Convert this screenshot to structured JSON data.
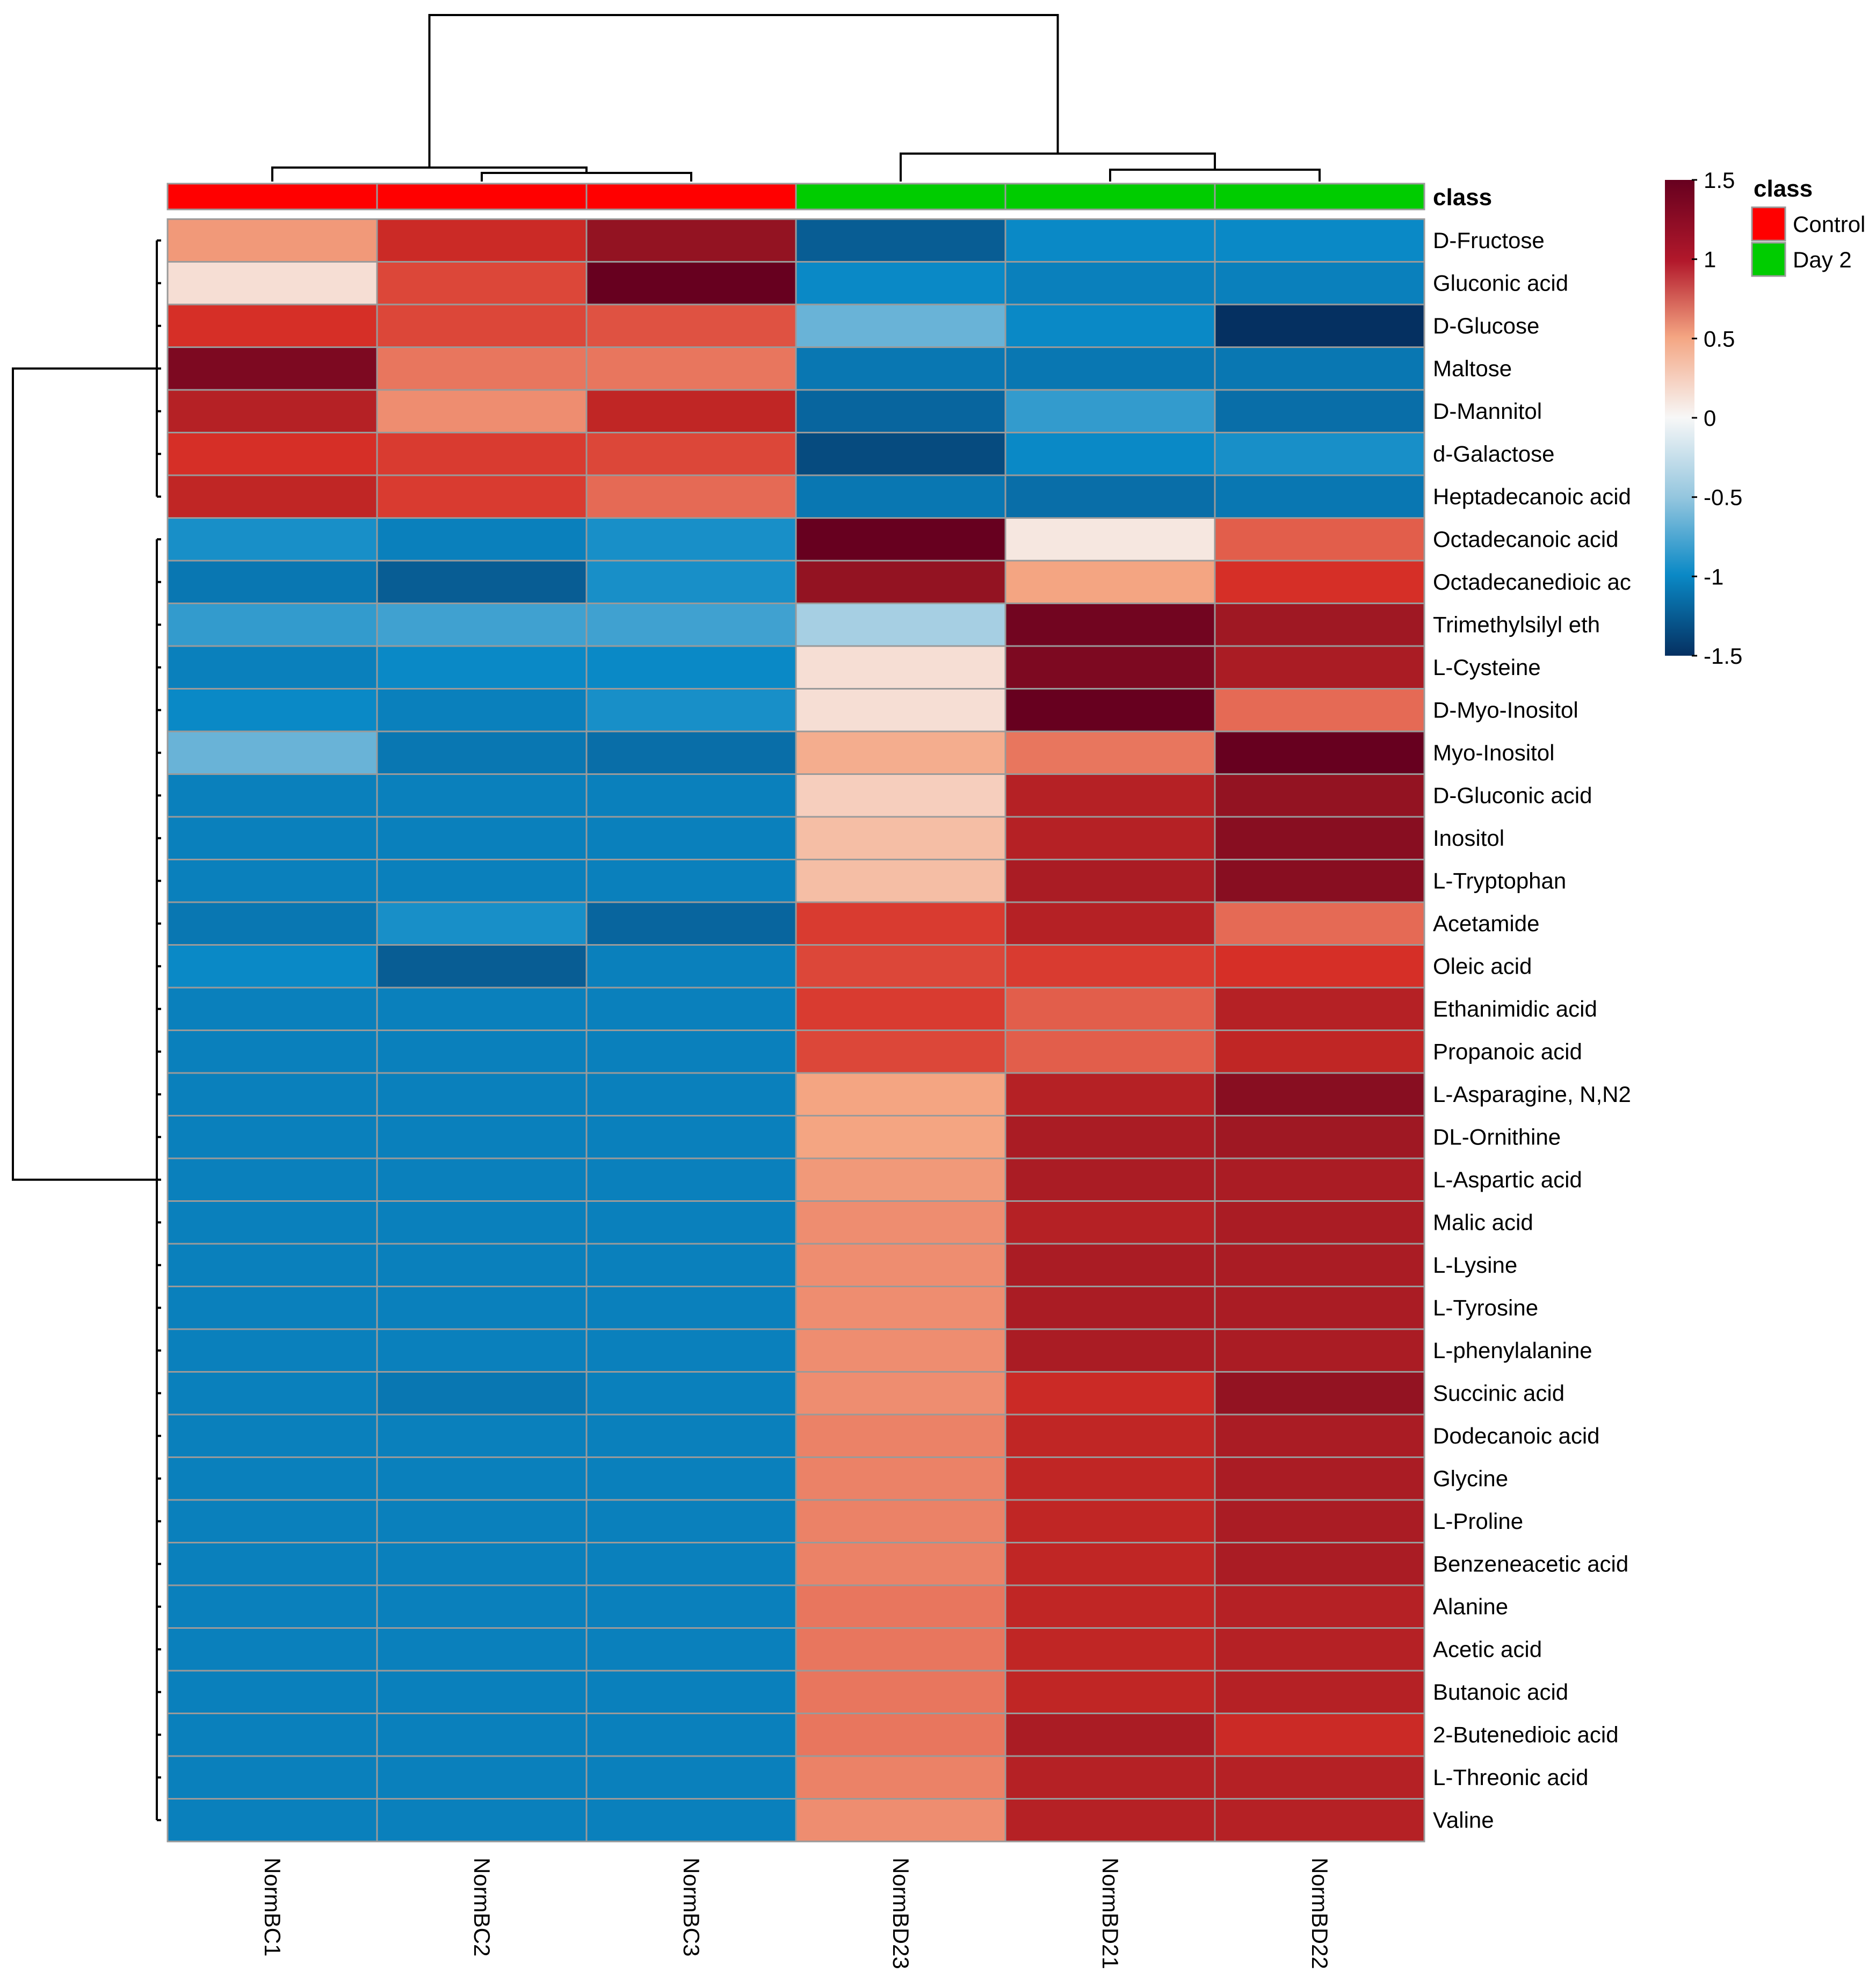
{
  "chart_data": {
    "type": "heatmap",
    "title": "",
    "class_label": "class",
    "columns": [
      "NormBC1",
      "NormBC2",
      "NormBC3",
      "NormBD23",
      "NormBD21",
      "NormBD22"
    ],
    "column_class": [
      "Control",
      "Control",
      "Control",
      "Day 2",
      "Day 2",
      "Day 2"
    ],
    "rows": [
      "D-Fructose",
      "Gluconic acid",
      "D-Glucose",
      "Maltose",
      "D-Mannitol",
      "d-Galactose",
      "Heptadecanoic acid",
      "Octadecanoic acid",
      "Octadecanedioic ac",
      "Trimethylsilyl eth",
      "L-Cysteine",
      "D-Myo-Inositol",
      "Myo-Inositol",
      "D-Gluconic acid",
      "Inositol",
      "L-Tryptophan",
      "Acetamide",
      "Oleic acid",
      "Ethanimidic acid",
      "Propanoic acid",
      "L-Asparagine, N,N2",
      "DL-Ornithine",
      "L-Aspartic acid",
      "Malic acid",
      "L-Lysine",
      "L-Tyrosine",
      "L-phenylalanine",
      "Succinic acid",
      "Dodecanoic acid",
      "Glycine",
      "L-Proline",
      "Benzeneacetic acid",
      "Alanine",
      "Acetic acid",
      "Butanoic acid",
      "2-Butenedioic acid",
      "L-Threonic acid",
      "Valine"
    ],
    "values": [
      [
        0.55,
        1.05,
        1.3,
        -1.25,
        -1.0,
        -1.0
      ],
      [
        0.15,
        0.9,
        1.55,
        -1.0,
        -1.05,
        -1.05
      ],
      [
        1.0,
        0.9,
        0.85,
        -0.65,
        -1.0,
        -1.5
      ],
      [
        1.4,
        0.7,
        0.7,
        -1.1,
        -1.1,
        -1.1
      ],
      [
        1.15,
        0.6,
        1.1,
        -1.2,
        -0.85,
        -1.15
      ],
      [
        1.0,
        0.95,
        0.9,
        -1.35,
        -1.0,
        -0.95
      ],
      [
        1.1,
        0.95,
        0.75,
        -1.1,
        -1.15,
        -1.1
      ],
      [
        -0.95,
        -1.05,
        -0.95,
        1.6,
        0.1,
        0.8
      ],
      [
        -1.1,
        -1.25,
        -0.95,
        1.3,
        0.5,
        1.0
      ],
      [
        -0.85,
        -0.8,
        -0.8,
        -0.4,
        1.45,
        1.25
      ],
      [
        -1.05,
        -1.0,
        -1.0,
        0.15,
        1.4,
        1.2
      ],
      [
        -1.0,
        -1.05,
        -0.95,
        0.15,
        1.6,
        0.75
      ],
      [
        -0.65,
        -1.1,
        -1.15,
        0.45,
        0.7,
        1.55
      ],
      [
        -1.05,
        -1.05,
        -1.05,
        0.25,
        1.15,
        1.3
      ],
      [
        -1.05,
        -1.05,
        -1.05,
        0.35,
        1.15,
        1.35
      ],
      [
        -1.05,
        -1.05,
        -1.05,
        0.35,
        1.2,
        1.35
      ],
      [
        -1.1,
        -0.95,
        -1.2,
        0.95,
        1.15,
        0.75
      ],
      [
        -1.0,
        -1.25,
        -1.05,
        0.9,
        0.95,
        1.0
      ],
      [
        -1.05,
        -1.05,
        -1.05,
        0.95,
        0.8,
        1.15
      ],
      [
        -1.05,
        -1.05,
        -1.05,
        0.9,
        0.8,
        1.1
      ],
      [
        -1.05,
        -1.05,
        -1.05,
        0.5,
        1.15,
        1.35
      ],
      [
        -1.05,
        -1.05,
        -1.05,
        0.5,
        1.2,
        1.25
      ],
      [
        -1.05,
        -1.05,
        -1.05,
        0.55,
        1.2,
        1.2
      ],
      [
        -1.05,
        -1.05,
        -1.05,
        0.6,
        1.15,
        1.2
      ],
      [
        -1.05,
        -1.05,
        -1.05,
        0.6,
        1.2,
        1.2
      ],
      [
        -1.05,
        -1.05,
        -1.05,
        0.6,
        1.2,
        1.2
      ],
      [
        -1.05,
        -1.05,
        -1.05,
        0.6,
        1.2,
        1.2
      ],
      [
        -1.05,
        -1.1,
        -1.05,
        0.6,
        1.05,
        1.3
      ],
      [
        -1.05,
        -1.05,
        -1.05,
        0.65,
        1.1,
        1.2
      ],
      [
        -1.05,
        -1.05,
        -1.05,
        0.65,
        1.1,
        1.2
      ],
      [
        -1.05,
        -1.05,
        -1.05,
        0.65,
        1.1,
        1.2
      ],
      [
        -1.05,
        -1.05,
        -1.05,
        0.65,
        1.1,
        1.2
      ],
      [
        -1.05,
        -1.05,
        -1.05,
        0.7,
        1.1,
        1.15
      ],
      [
        -1.05,
        -1.05,
        -1.05,
        0.7,
        1.1,
        1.15
      ],
      [
        -1.05,
        -1.05,
        -1.05,
        0.7,
        1.1,
        1.15
      ],
      [
        -1.05,
        -1.05,
        -1.05,
        0.7,
        1.2,
        1.05
      ],
      [
        -1.05,
        -1.05,
        -1.05,
        0.65,
        1.15,
        1.15
      ],
      [
        -1.05,
        -1.05,
        -1.05,
        0.6,
        1.15,
        1.15
      ]
    ],
    "color_scale": {
      "min": -1.5,
      "max": 1.5,
      "ticks": [
        "1.5",
        "1",
        "0.5",
        "0",
        "-0.5",
        "-1",
        "-1.5"
      ],
      "low_color": "#053061",
      "high_color": "#67001f"
    },
    "legend": {
      "title": "class",
      "placement": "top-right",
      "entries": [
        {
          "label": "Control",
          "color": "#ff0000"
        },
        {
          "label": "Day 2",
          "color": "#00cc00"
        }
      ]
    },
    "dendrogram": {
      "columns": "top",
      "rows": "left",
      "column_groups": [
        [
          "NormBC1",
          "NormBC2",
          "NormBC3"
        ],
        [
          "NormBD23",
          "NormBD21",
          "NormBD22"
        ]
      ],
      "row_groups": [
        [
          "D-Fructose",
          "Gluconic acid",
          "D-Glucose",
          "Maltose",
          "D-Mannitol",
          "d-Galactose",
          "Heptadecanoic acid"
        ],
        [
          "Octadecanoic acid",
          "Octadecanedioic ac",
          "Trimethylsilyl eth",
          "L-Cysteine",
          "D-Myo-Inositol",
          "Myo-Inositol",
          "D-Gluconic acid",
          "Inositol",
          "L-Tryptophan",
          "Acetamide",
          "Oleic acid",
          "Ethanimidic acid",
          "Propanoic acid",
          "L-Asparagine, N,N2",
          "DL-Ornithine",
          "L-Aspartic acid",
          "Malic acid",
          "L-Lysine",
          "L-Tyrosine",
          "L-phenylalanine",
          "Succinic acid",
          "Dodecanoic acid",
          "Glycine",
          "L-Proline",
          "Benzeneacetic acid",
          "Alanine",
          "Acetic acid",
          "Butanoic acid",
          "2-Butenedioic acid",
          "L-Threonic acid",
          "Valine"
        ]
      ]
    }
  }
}
